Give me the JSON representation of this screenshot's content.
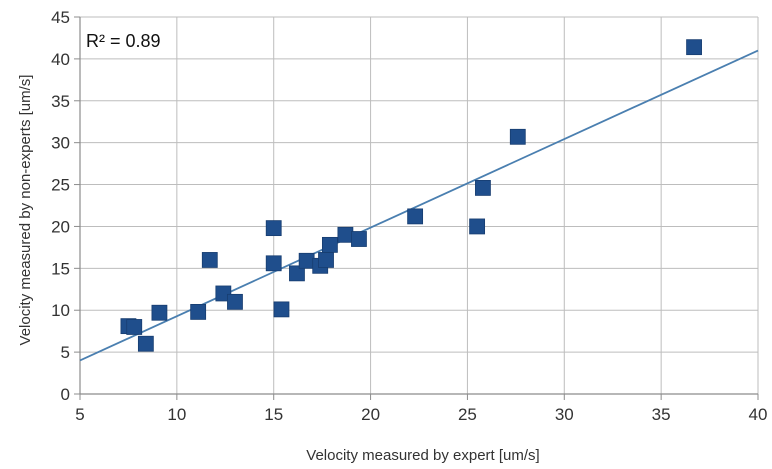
{
  "chart_data": {
    "type": "scatter",
    "title": "",
    "xlabel": "Velocity measured by expert [um/s]",
    "ylabel": "Velocity measured by non-experts [um/s]",
    "xlim": [
      5,
      40
    ],
    "ylim": [
      0,
      45
    ],
    "x_ticks": [
      5,
      10,
      15,
      20,
      25,
      30,
      35,
      40
    ],
    "y_ticks": [
      0,
      5,
      10,
      15,
      20,
      25,
      30,
      35,
      40,
      45
    ],
    "grid": true,
    "legend": "none",
    "annotation": "R² = 0.89",
    "colors": {
      "marker": "#1f4e8c",
      "trendline": "#4a7fb0",
      "grid": "#bdbdbd",
      "axis": "#8c8c8c"
    },
    "series": [
      {
        "points": [
          {
            "x": 7.5,
            "y": 8.1
          },
          {
            "x": 7.8,
            "y": 8.0
          },
          {
            "x": 8.4,
            "y": 6.0
          },
          {
            "x": 9.1,
            "y": 9.7
          },
          {
            "x": 11.1,
            "y": 9.8
          },
          {
            "x": 11.7,
            "y": 16.0
          },
          {
            "x": 12.4,
            "y": 12.0
          },
          {
            "x": 13.0,
            "y": 11.0
          },
          {
            "x": 15.0,
            "y": 19.8
          },
          {
            "x": 15.0,
            "y": 15.6
          },
          {
            "x": 15.4,
            "y": 10.1
          },
          {
            "x": 16.2,
            "y": 14.4
          },
          {
            "x": 16.7,
            "y": 15.9
          },
          {
            "x": 17.4,
            "y": 15.3
          },
          {
            "x": 17.7,
            "y": 16.0
          },
          {
            "x": 17.9,
            "y": 17.8
          },
          {
            "x": 18.7,
            "y": 19.0
          },
          {
            "x": 19.4,
            "y": 18.5
          },
          {
            "x": 22.3,
            "y": 21.2
          },
          {
            "x": 25.5,
            "y": 20.0
          },
          {
            "x": 25.8,
            "y": 24.6
          },
          {
            "x": 27.6,
            "y": 30.7
          },
          {
            "x": 36.7,
            "y": 41.4
          }
        ]
      }
    ],
    "trendline": {
      "x": [
        5,
        40
      ],
      "y": [
        4.0,
        41.0
      ]
    }
  }
}
